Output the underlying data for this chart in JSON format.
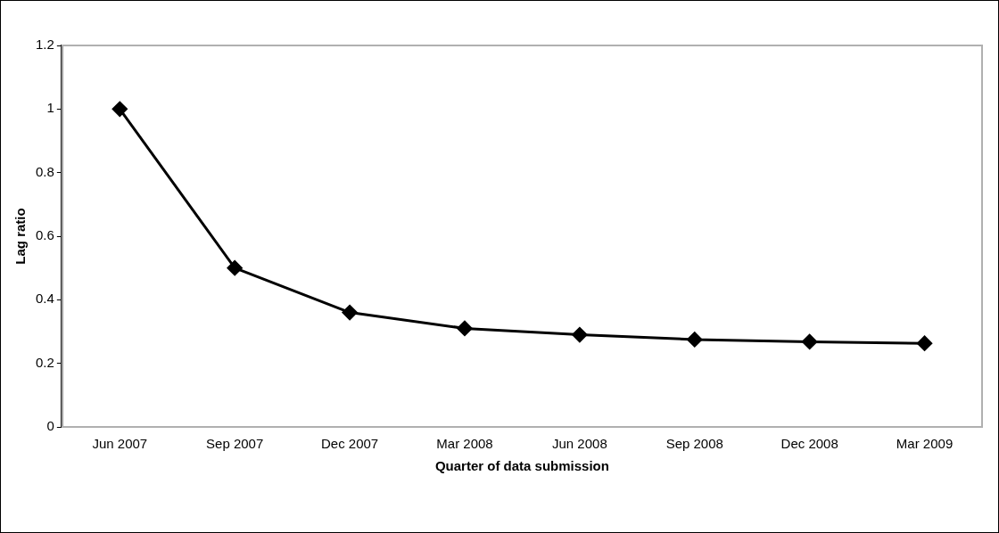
{
  "chart_data": {
    "type": "line",
    "xlabel": "Quarter of data submission",
    "ylabel": "Lag ratio",
    "categories": [
      "Jun 2007",
      "Sep 2007",
      "Dec 2007",
      "Mar 2008",
      "Jun 2008",
      "Sep 2008",
      "Dec 2008",
      "Mar 2009"
    ],
    "series": [
      {
        "color": "#000000",
        "values": [
          1,
          0.5,
          0.36,
          0.31,
          0.29,
          0.275,
          0.268,
          0.263
        ]
      }
    ],
    "ylim": [
      0,
      1.2
    ],
    "yticks": [
      0,
      0.2,
      0.4,
      0.6,
      0.8,
      1,
      1.2
    ],
    "grid": false,
    "legend": false,
    "marker": "diamond",
    "line_style": "solid"
  }
}
